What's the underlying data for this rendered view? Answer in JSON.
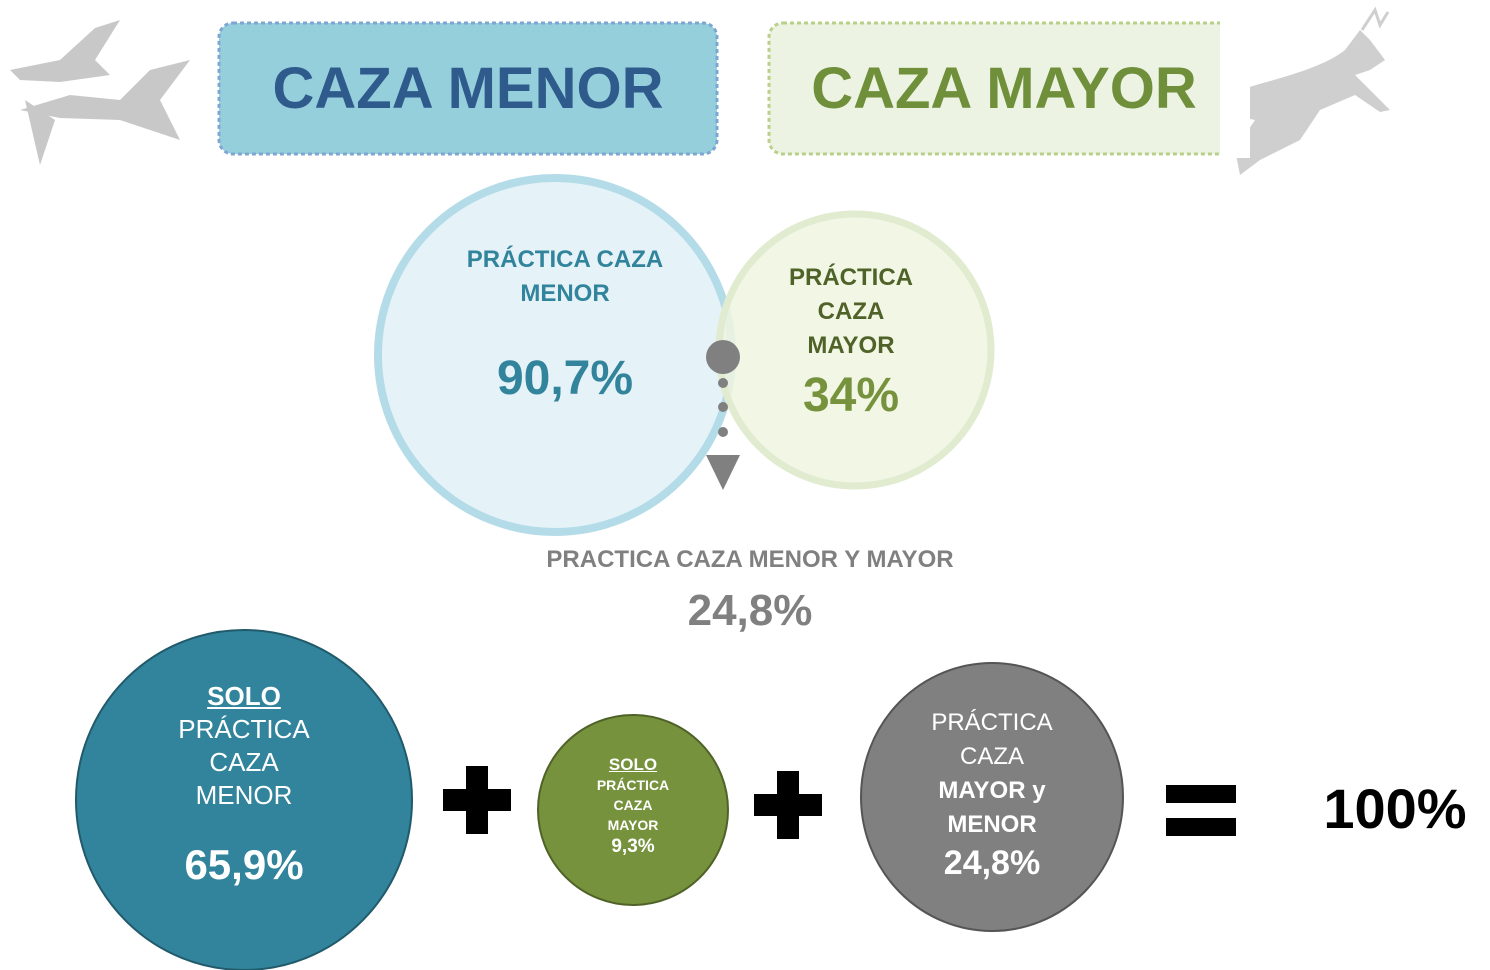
{
  "header": {
    "left_title": "CAZA MENOR",
    "right_title": "CAZA MAYOR"
  },
  "venn": {
    "menor": {
      "label": "PRÁCTICA CAZA MENOR",
      "value": "90,7%"
    },
    "mayor": {
      "label": "PRÁCTICA CAZA MAYOR",
      "value": "34%"
    },
    "overlap": {
      "label": "PRACTICA CAZA MENOR Y MAYOR",
      "value": "24,8%"
    }
  },
  "breakdown": {
    "solo_menor": {
      "prefix": "SOLO",
      "label": "PRÁCTICA CAZA MENOR",
      "value": "65,9%"
    },
    "solo_mayor": {
      "prefix": "SOLO",
      "label": "PRÁCTICA CAZA MAYOR",
      "value": "9,3%"
    },
    "ambas": {
      "label": "PRÁCTICA CAZA",
      "bold_label": "MAYOR y MENOR",
      "value": "24,8%"
    },
    "total": "100%"
  }
}
